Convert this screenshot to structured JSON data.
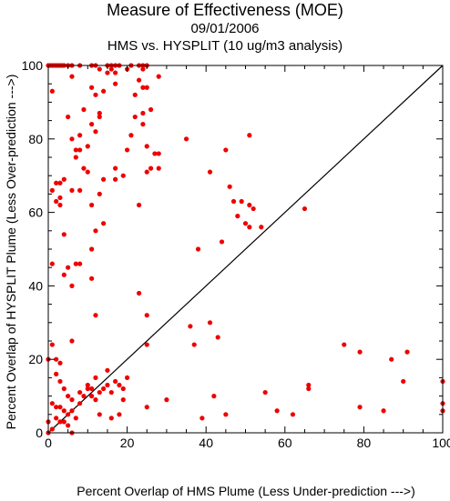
{
  "chart_data": {
    "type": "scatter",
    "title": "Measure of Effectiveness (MOE)",
    "subtitle_date": "09/01/2006",
    "subtitle_analysis": "HMS vs. HYSPLIT  (10 ug/m3 analysis)",
    "xlabel": "Percent Overlap of HMS Plume (Less Under-prediction --->)",
    "ylabel": "Percent Overlap of HYSPLIT Plume (Less Over-prediction --->)",
    "xlim": [
      0,
      100
    ],
    "ylim": [
      0,
      100
    ],
    "xticks": [
      0,
      20,
      40,
      60,
      80,
      100
    ],
    "yticks": [
      0,
      20,
      40,
      60,
      80,
      100
    ],
    "xtick_labels": [
      "0",
      "20",
      "40",
      "60",
      "80",
      "100"
    ],
    "ytick_labels": [
      "0",
      "20",
      "40",
      "60",
      "80",
      "100"
    ],
    "reference_line": {
      "from": [
        0,
        0
      ],
      "to": [
        100,
        100
      ],
      "color": "#000000"
    },
    "marker_color": "#ee0000",
    "grid": false,
    "series": [
      {
        "points": [
          [
            0,
            100
          ],
          [
            0.5,
            100
          ],
          [
            1,
            100
          ],
          [
            1.5,
            100
          ],
          [
            2,
            100
          ],
          [
            2.5,
            100
          ],
          [
            3,
            100
          ],
          [
            3.5,
            100
          ],
          [
            4,
            100
          ],
          [
            5,
            100
          ],
          [
            6,
            100
          ],
          [
            8,
            100
          ],
          [
            11,
            100
          ],
          [
            12,
            100
          ],
          [
            15,
            100
          ],
          [
            16,
            100
          ],
          [
            17,
            100
          ],
          [
            18,
            100
          ],
          [
            21,
            100
          ],
          [
            23,
            100
          ],
          [
            24,
            100
          ],
          [
            25,
            100
          ],
          [
            16,
            99
          ],
          [
            20,
            99
          ],
          [
            17,
            98
          ],
          [
            24,
            99
          ],
          [
            15,
            98
          ],
          [
            13,
            99
          ],
          [
            6,
            97
          ],
          [
            28,
            97
          ],
          [
            23,
            96
          ],
          [
            17,
            95
          ],
          [
            11,
            94
          ],
          [
            24,
            94
          ],
          [
            25,
            94
          ],
          [
            14,
            93
          ],
          [
            1,
            93
          ],
          [
            12,
            92
          ],
          [
            22,
            92
          ],
          [
            26,
            88
          ],
          [
            9,
            88
          ],
          [
            13,
            87
          ],
          [
            5,
            86
          ],
          [
            13,
            86
          ],
          [
            24,
            87
          ],
          [
            22,
            86
          ],
          [
            11,
            84
          ],
          [
            24,
            84
          ],
          [
            12,
            82
          ],
          [
            8,
            81
          ],
          [
            21,
            81
          ],
          [
            6,
            80
          ],
          [
            10,
            78
          ],
          [
            25,
            78
          ],
          [
            7,
            77
          ],
          [
            8,
            77
          ],
          [
            20,
            77
          ],
          [
            28,
            76
          ],
          [
            27,
            76
          ],
          [
            7,
            75
          ],
          [
            9,
            72
          ],
          [
            17,
            72
          ],
          [
            25,
            71
          ],
          [
            28,
            72
          ],
          [
            10,
            71
          ],
          [
            26,
            72
          ],
          [
            17,
            69
          ],
          [
            19,
            70
          ],
          [
            2,
            68
          ],
          [
            3,
            68
          ],
          [
            4,
            69
          ],
          [
            14,
            69
          ],
          [
            1,
            66
          ],
          [
            6,
            66
          ],
          [
            8,
            66
          ],
          [
            3,
            64
          ],
          [
            13,
            65
          ],
          [
            2,
            63
          ],
          [
            3,
            62
          ],
          [
            11,
            62
          ],
          [
            23,
            62
          ],
          [
            14,
            57
          ],
          [
            12,
            55
          ],
          [
            4,
            54
          ],
          [
            11,
            50
          ],
          [
            7,
            46
          ],
          [
            8,
            46
          ],
          [
            1,
            46
          ],
          [
            5,
            45
          ],
          [
            4,
            43
          ],
          [
            11,
            42
          ],
          [
            6,
            40
          ],
          [
            12,
            32
          ],
          [
            6,
            25
          ],
          [
            23,
            38
          ],
          [
            0,
            20
          ],
          [
            1,
            24
          ],
          [
            2,
            20
          ],
          [
            2,
            16
          ],
          [
            3,
            19
          ],
          [
            3,
            14
          ],
          [
            4,
            12
          ],
          [
            5,
            10
          ],
          [
            6,
            9
          ],
          [
            3,
            7
          ],
          [
            4,
            6
          ],
          [
            5,
            5
          ],
          [
            6,
            6
          ],
          [
            7,
            4
          ],
          [
            8,
            11
          ],
          [
            9,
            10
          ],
          [
            10,
            13
          ],
          [
            11,
            12
          ],
          [
            12,
            15
          ],
          [
            13,
            11
          ],
          [
            14,
            12
          ],
          [
            15,
            17
          ],
          [
            16,
            11
          ],
          [
            17,
            14
          ],
          [
            18,
            13
          ],
          [
            19,
            12
          ],
          [
            1,
            8
          ],
          [
            2,
            7
          ],
          [
            3,
            3
          ],
          [
            4,
            3
          ],
          [
            1,
            1
          ],
          [
            0,
            0
          ],
          [
            0,
            3
          ],
          [
            2,
            4
          ],
          [
            5,
            2
          ],
          [
            6,
            0
          ],
          [
            8,
            8
          ],
          [
            10,
            12
          ],
          [
            11,
            10
          ],
          [
            12,
            9
          ],
          [
            13,
            5
          ],
          [
            15,
            13
          ],
          [
            16,
            4
          ],
          [
            18,
            5
          ],
          [
            19,
            9
          ],
          [
            20,
            15
          ],
          [
            25,
            24
          ],
          [
            25,
            32
          ],
          [
            25,
            7
          ],
          [
            30,
            9
          ],
          [
            35,
            80
          ],
          [
            36,
            29
          ],
          [
            37,
            24
          ],
          [
            38,
            50
          ],
          [
            39,
            4
          ],
          [
            41,
            71
          ],
          [
            41,
            30
          ],
          [
            42,
            10
          ],
          [
            43,
            26
          ],
          [
            44,
            52
          ],
          [
            45,
            77
          ],
          [
            45,
            5
          ],
          [
            46,
            67
          ],
          [
            47,
            63
          ],
          [
            48,
            59
          ],
          [
            49,
            63
          ],
          [
            50,
            57
          ],
          [
            51,
            62
          ],
          [
            51,
            81
          ],
          [
            51,
            56
          ],
          [
            52,
            61
          ],
          [
            54,
            56
          ],
          [
            55,
            11
          ],
          [
            58,
            6
          ],
          [
            62,
            5
          ],
          [
            65,
            61
          ],
          [
            66,
            13
          ],
          [
            66,
            12
          ],
          [
            75,
            24
          ],
          [
            79,
            22
          ],
          [
            79,
            7
          ],
          [
            85,
            6
          ],
          [
            87,
            20
          ],
          [
            90,
            14
          ],
          [
            91,
            22
          ],
          [
            100,
            14
          ],
          [
            100,
            8
          ],
          [
            100,
            6
          ]
        ]
      }
    ]
  }
}
